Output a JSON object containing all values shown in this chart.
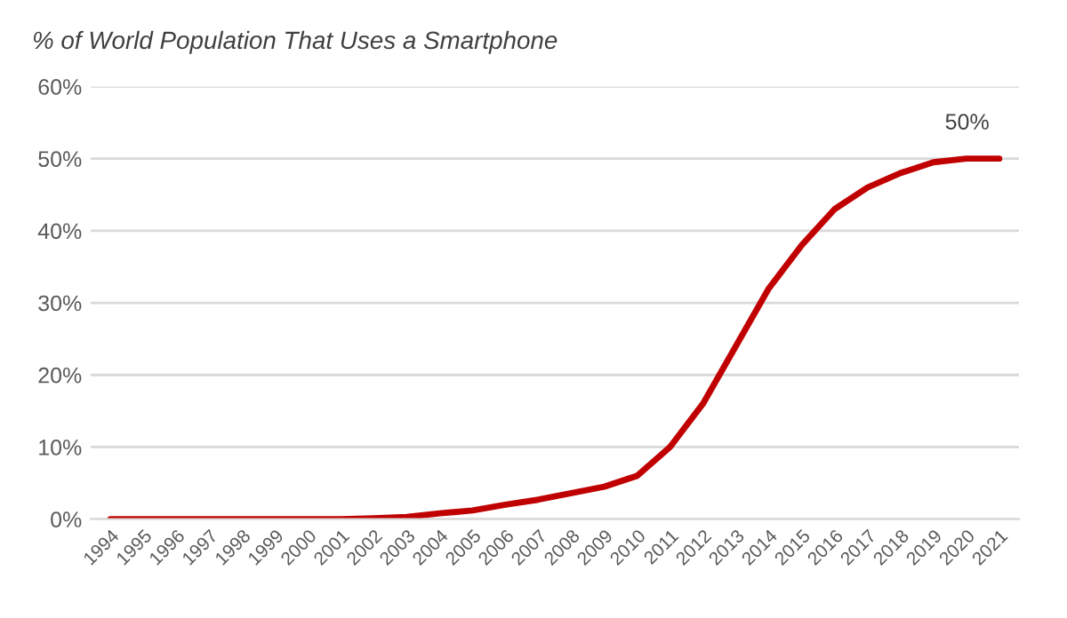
{
  "chart_data": {
    "type": "line",
    "title": "% of World Population That Uses a Smartphone",
    "categories": [
      "1994",
      "1995",
      "1996",
      "1997",
      "1998",
      "1999",
      "2000",
      "2001",
      "2002",
      "2003",
      "2004",
      "2005",
      "2006",
      "2007",
      "2008",
      "2009",
      "2010",
      "2011",
      "2012",
      "2013",
      "2014",
      "2015",
      "2016",
      "2017",
      "2018",
      "2019",
      "2020",
      "2021"
    ],
    "series": [
      {
        "color": "#c00000",
        "values": [
          0,
          0,
          0,
          0,
          0,
          0,
          0,
          0,
          0.1,
          0.3,
          0.8,
          1.2,
          2,
          2.7,
          3.6,
          4.5,
          6,
          10,
          16,
          24,
          32,
          38,
          43,
          46,
          48,
          49.5,
          50,
          50
        ],
        "value_labels": [
          null,
          null,
          null,
          null,
          null,
          null,
          null,
          null,
          null,
          null,
          null,
          null,
          null,
          null,
          null,
          null,
          null,
          null,
          null,
          null,
          null,
          null,
          null,
          null,
          null,
          null,
          null,
          "50%"
        ]
      }
    ],
    "ylim": [
      0,
      60
    ],
    "yticks": [
      {
        "value": 0,
        "label": "0%"
      },
      {
        "value": 10,
        "label": "10%"
      },
      {
        "value": 20,
        "label": "20%"
      },
      {
        "value": 30,
        "label": "30%"
      },
      {
        "value": 40,
        "label": "40%"
      },
      {
        "value": 50,
        "label": "50%"
      },
      {
        "value": 60,
        "label": "60%"
      }
    ],
    "grid": "y",
    "marker": "none",
    "line_style": "solid"
  }
}
